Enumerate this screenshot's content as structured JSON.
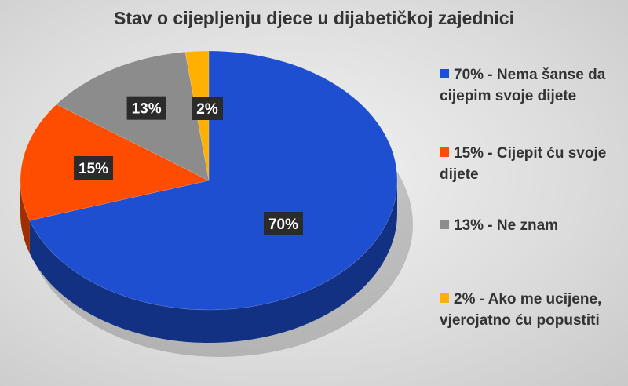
{
  "chart_data": {
    "type": "pie",
    "title": "Stav o cijepljenju djece u dijabetičkoj zajednici",
    "slices": [
      {
        "label": "70% - Nema šanse da cijepim svoje dijete",
        "value": 70,
        "value_label": "70%",
        "color": "#1f4fd1"
      },
      {
        "label": "15% - Cijepit ću svoje dijete",
        "value": 15,
        "value_label": "15%",
        "color": "#ff4d00"
      },
      {
        "label": "13% - Ne znam",
        "value": 13,
        "value_label": "13%",
        "color": "#8c8c8c"
      },
      {
        "label": "2% - Ako me ucijene, vjerojatno ću popustiti",
        "value": 2,
        "value_label": "2%",
        "color": "#ffb000"
      }
    ],
    "legend_position": "right",
    "style": "3d"
  }
}
